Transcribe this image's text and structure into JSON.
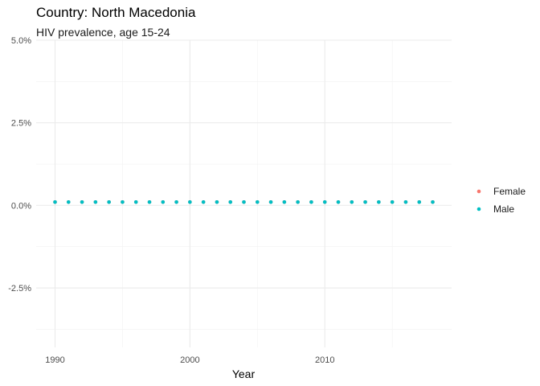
{
  "chart_data": {
    "type": "scatter",
    "title": "Country: North Macedonia",
    "subtitle": "HIV prevalence, age 15-24",
    "xlabel": "Year",
    "ylabel": "",
    "xlim": [
      1988.6,
      2019.4
    ],
    "ylim": [
      -4.3,
      5.0
    ],
    "x_ticks": [
      1990,
      2000,
      2010
    ],
    "y_ticks": [
      {
        "value": 5.0,
        "label": "5.0%"
      },
      {
        "value": 2.5,
        "label": "2.5%"
      },
      {
        "value": 0.0,
        "label": "0.0%"
      },
      {
        "value": -2.5,
        "label": "-2.5%"
      }
    ],
    "grid": true,
    "legend_position": "right",
    "series": [
      {
        "name": "Female",
        "color": "#F8766D",
        "x": [
          1990,
          1991,
          1992,
          1993,
          1994,
          1995,
          1996,
          1997,
          1998,
          1999,
          2000,
          2001,
          2002,
          2003,
          2004,
          2005,
          2006,
          2007,
          2008,
          2009,
          2010,
          2011,
          2012,
          2013,
          2014,
          2015,
          2016,
          2017,
          2018
        ],
        "y": [
          0.1,
          0.1,
          0.1,
          0.1,
          0.1,
          0.1,
          0.1,
          0.1,
          0.1,
          0.1,
          0.1,
          0.1,
          0.1,
          0.1,
          0.1,
          0.1,
          0.1,
          0.1,
          0.1,
          0.1,
          0.1,
          0.1,
          0.1,
          0.1,
          0.1,
          0.1,
          0.1,
          0.1,
          0.1
        ]
      },
      {
        "name": "Male",
        "color": "#00BFC4",
        "x": [
          1990,
          1991,
          1992,
          1993,
          1994,
          1995,
          1996,
          1997,
          1998,
          1999,
          2000,
          2001,
          2002,
          2003,
          2004,
          2005,
          2006,
          2007,
          2008,
          2009,
          2010,
          2011,
          2012,
          2013,
          2014,
          2015,
          2016,
          2017,
          2018
        ],
        "y": [
          0.1,
          0.1,
          0.1,
          0.1,
          0.1,
          0.1,
          0.1,
          0.1,
          0.1,
          0.1,
          0.1,
          0.1,
          0.1,
          0.1,
          0.1,
          0.1,
          0.1,
          0.1,
          0.1,
          0.1,
          0.1,
          0.1,
          0.1,
          0.1,
          0.1,
          0.1,
          0.1,
          0.1,
          0.1
        ]
      }
    ]
  }
}
